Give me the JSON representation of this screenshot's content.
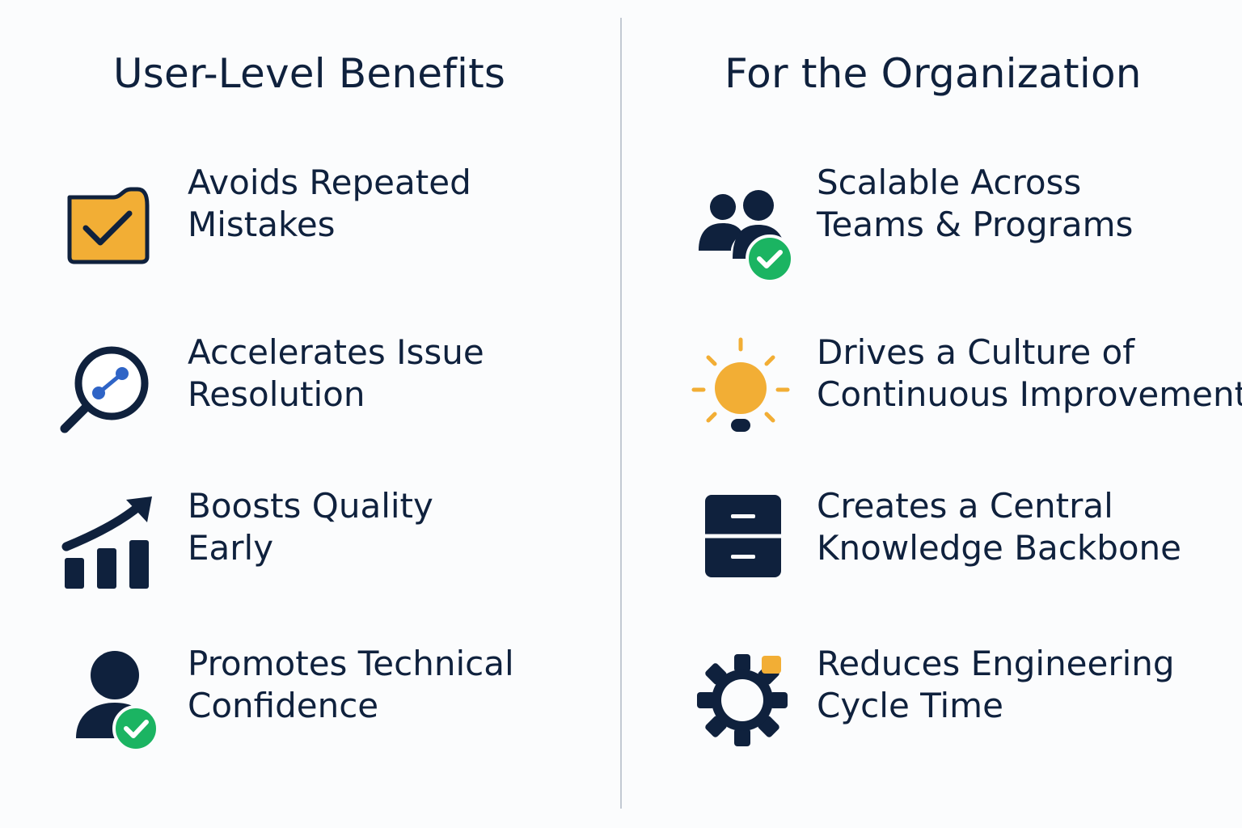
{
  "left": {
    "title": "User-Level Benefits",
    "items": [
      {
        "icon": "folder-check-icon",
        "line1": "Avoids Repeated",
        "line2": "Mistakes"
      },
      {
        "icon": "magnifier-icon",
        "line1": "Accelerates Issue",
        "line2": "Resolution"
      },
      {
        "icon": "growth-chart-icon",
        "line1": "Boosts Quality",
        "line2": "Early"
      },
      {
        "icon": "user-check-icon",
        "line1": "Promotes Technical",
        "line2": "Confidence"
      }
    ]
  },
  "right": {
    "title": "For the Organization",
    "items": [
      {
        "icon": "team-check-icon",
        "line1": "Scalable Across",
        "line2": "Teams & Programs"
      },
      {
        "icon": "lightbulb-icon",
        "line1": "Drives a Culture of",
        "line2": "Continuous Improvement"
      },
      {
        "icon": "file-cabinet-icon",
        "line1": "Creates a Central",
        "line2": "Knowledge Backbone"
      },
      {
        "icon": "gear-icon",
        "line1": "Reduces Engineering",
        "line2": "Cycle Time"
      }
    ]
  },
  "colors": {
    "navy": "#0f213d",
    "gold": "#f2ae35",
    "green": "#1bb462",
    "blue": "#2f64c6",
    "divider": "#c3cad3"
  }
}
